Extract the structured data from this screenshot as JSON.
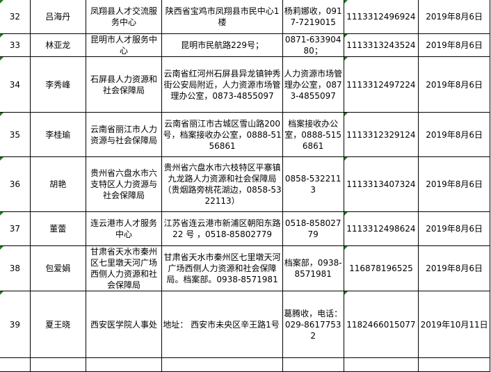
{
  "rows": [
    {
      "no": "32",
      "name": "吕海丹",
      "unit": "凤翔县人才交流服务中心",
      "address": "陕西省宝鸡市凤翔县市民中心1楼",
      "contact": "杨莉娜收，0917-7219015",
      "tracking": "1113312496924",
      "date": "2019年8月6日"
    },
    {
      "no": "33",
      "name": "林亚龙",
      "unit": "昆明市人才服务中心",
      "address": "昆明市民航路229号；",
      "contact": "0871-63390480；",
      "tracking": "1113313243524",
      "date": "2019年8月6日"
    },
    {
      "no": "34",
      "name": "李秀峰",
      "unit": "石屏县人力资源和社会保障局",
      "address": "云南省红河州石屏县异龙镇钟秀街公安局附近，人力资源市场管理办公室，0873-4855097",
      "contact": "人力资源市场管理办公室，0873-4855097",
      "tracking": "1113312497224",
      "date": "2019年8月6日"
    },
    {
      "no": "35",
      "name": "李桂瑜",
      "unit": "云南省丽江市人力资源与社会保障局",
      "address": "云南省丽江市古城区雪山路200号，档案接收办公室，0888-5156861",
      "contact": "档案接收办公室，0888-5156861",
      "tracking": "1113312329124",
      "date": "2019年8月6日"
    },
    {
      "no": "36",
      "name": "胡艳",
      "unit": "贵州省六盘水市六支特区人力资源与社会保障局",
      "address": "贵州省六盘水市六枝特区平寨镇九龙路人力资源和社会保障局（贵烟路旁桃花湖边，0858-5322113）",
      "contact": "0858-5322113",
      "tracking": "1113313407324",
      "date": "2019年8月6日"
    },
    {
      "no": "37",
      "name": "董蕾",
      "unit": "连云港市人才服务中心",
      "address": "江苏省连云港市新浦区朝阳东路 22 号 ，0518-85802779",
      "contact": "0518-85802779",
      "tracking": "1113312498624",
      "date": "2019年8月6日"
    },
    {
      "no": "38",
      "name": "包爱娟",
      "unit": "甘肃省天水市秦州区七里墩天河广场西侧人力资源和社会保障局",
      "address": "甘肃省天水市秦州区七里墩天河广场西侧人力资源和社会保障局。档案部。0938-8571981",
      "contact": "档案部，0938-8571981",
      "tracking": "116878196525",
      "date": "2019年8月6日"
    },
    {
      "no": "39",
      "name": "夏王晓",
      "unit": "西安医学院人事处",
      "address": "地址： 西安市未央区辛王路1号",
      "contact": "葛腾收，电话：029-86177532",
      "tracking": "1182466015077",
      "date": "2019年10月11日"
    }
  ],
  "colors": {
    "grid": "#000000",
    "error_marker": "#1f7a1f"
  }
}
